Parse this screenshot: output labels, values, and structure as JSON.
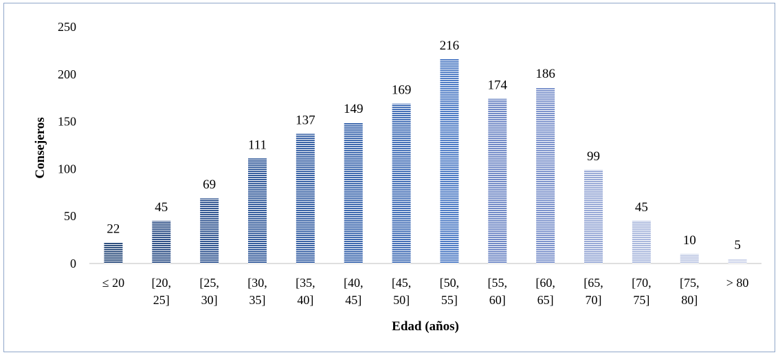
{
  "chart_data": {
    "type": "bar",
    "categories": [
      [
        "≤ 20"
      ],
      [
        "[20,",
        "25]"
      ],
      [
        "[25,",
        "30]"
      ],
      [
        "[30,",
        "35]"
      ],
      [
        "[35,",
        "40]"
      ],
      [
        "[40,",
        "45]"
      ],
      [
        "[45,",
        "50]"
      ],
      [
        "[50,",
        "55]"
      ],
      [
        "[55,",
        "60]"
      ],
      [
        "[60,",
        "65]"
      ],
      [
        "[65,",
        "70]"
      ],
      [
        "[70,",
        "75]"
      ],
      [
        "[75,",
        "80]"
      ],
      [
        "> 80"
      ]
    ],
    "values": [
      22,
      45,
      69,
      111,
      137,
      149,
      169,
      216,
      174,
      186,
      99,
      45,
      10,
      5
    ],
    "xlabel": "Edad (años)",
    "ylabel": "Consejeros",
    "ylim": [
      0,
      250
    ],
    "yticks": [
      0,
      50,
      100,
      150,
      200,
      250
    ],
    "grid": false,
    "legend": "none",
    "bar_fill": "horizontal-line pattern",
    "colors": [
      "#2e4f7e",
      "#2f5188",
      "#335792",
      "#365d9c",
      "#3a63a6",
      "#3d68ae",
      "#4570b7",
      "#4f7cc5",
      "#7189c6",
      "#7d93cc",
      "#98a9d6",
      "#aab8dd",
      "#bcc6e3",
      "#ccd3ea"
    ]
  }
}
